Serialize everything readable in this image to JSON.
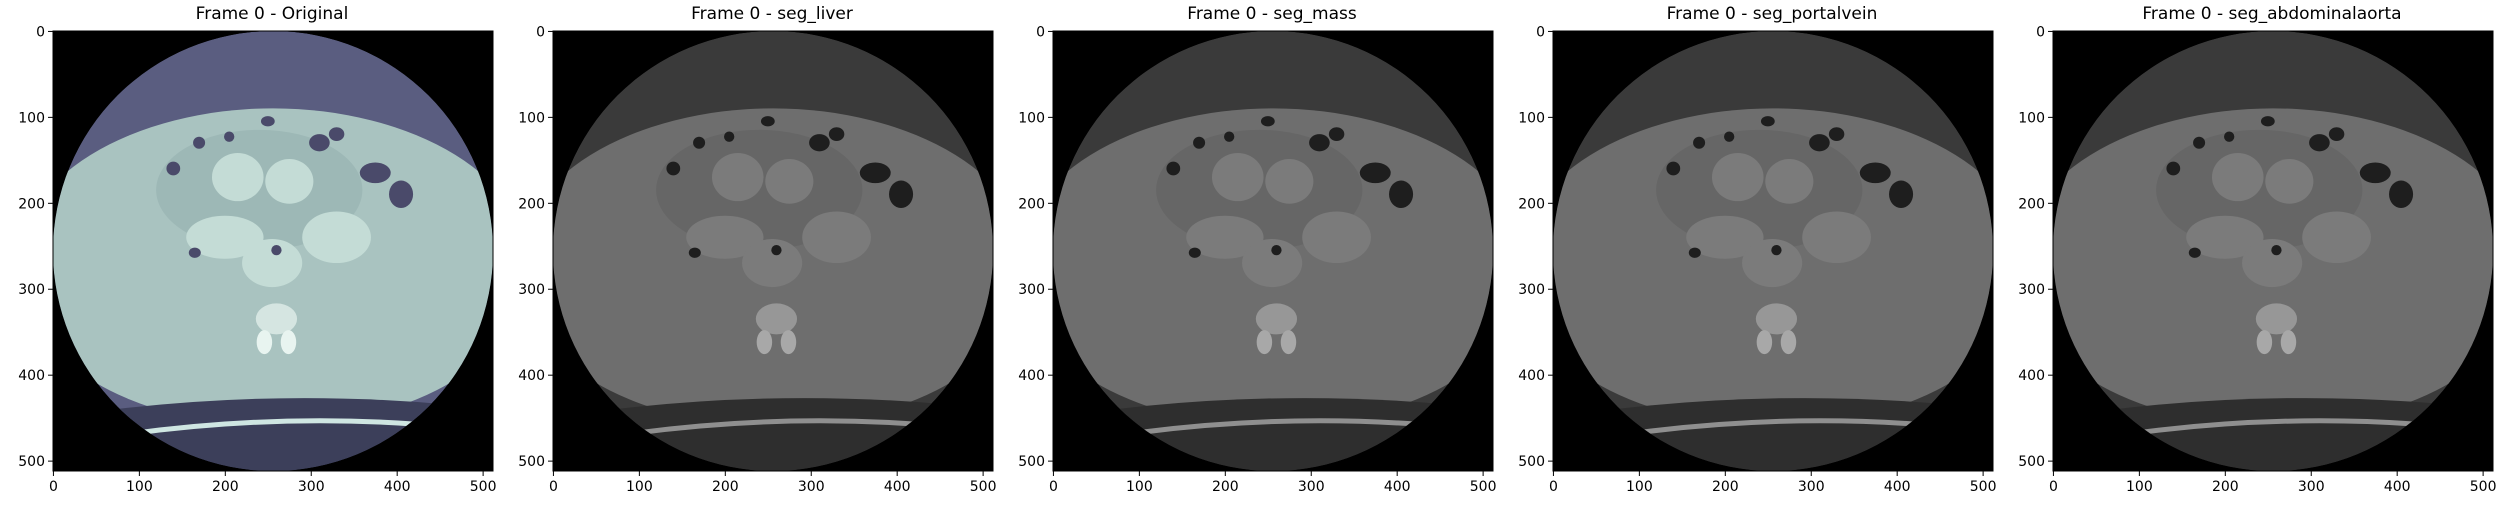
{
  "figure": {
    "panels": [
      {
        "title": "Frame 0 - Original",
        "colormap": "bone"
      },
      {
        "title": "Frame 0 - seg_liver",
        "colormap": "gray"
      },
      {
        "title": "Frame 0 - seg_mass",
        "colormap": "gray"
      },
      {
        "title": "Frame 0 - seg_portalvein",
        "colormap": "gray"
      },
      {
        "title": "Frame 0 - seg_abdominalaorta",
        "colormap": "gray"
      }
    ],
    "axes": {
      "x_ticks": [
        "0",
        "100",
        "200",
        "300",
        "400",
        "500"
      ],
      "y_ticks": [
        "0",
        "100",
        "200",
        "300",
        "400",
        "500"
      ],
      "xlim": [
        0,
        511
      ],
      "ylim": [
        511,
        0
      ]
    },
    "image_size": [
      512,
      512
    ]
  }
}
